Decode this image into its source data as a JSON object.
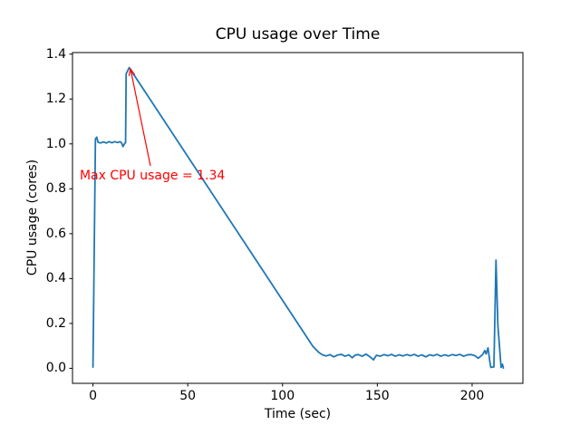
{
  "figure": {
    "background": "#ffffff",
    "frame_color": "#000000"
  },
  "chart_data": {
    "type": "line",
    "title": "CPU usage over Time",
    "xlabel": "Time (sec)",
    "ylabel": "CPU usage (cores)",
    "xlim": [
      -10.8,
      226.8
    ],
    "ylim": [
      -0.067,
      1.407
    ],
    "grid": false,
    "legend": null,
    "xticks": {
      "values": [
        0,
        50,
        100,
        150,
        200
      ],
      "labels": [
        "0",
        "50",
        "100",
        "150",
        "200"
      ]
    },
    "yticks": {
      "values": [
        0.0,
        0.2,
        0.4,
        0.6,
        0.8,
        1.0,
        1.2,
        1.4
      ],
      "labels": [
        "0.0",
        "0.2",
        "0.4",
        "0.6",
        "0.8",
        "1.0",
        "1.2",
        "1.4"
      ]
    },
    "series": [
      {
        "name": "CPU usage",
        "color": "#1f77b4",
        "line_width": 1.8,
        "points": [
          [
            0,
            0.005
          ],
          [
            1.3,
            1.022
          ],
          [
            2,
            1.03
          ],
          [
            2.7,
            1.007
          ],
          [
            4,
            1.004
          ],
          [
            5.5,
            1.009
          ],
          [
            7,
            1.004
          ],
          [
            8.5,
            1.01
          ],
          [
            10,
            1.005
          ],
          [
            11.5,
            1.01
          ],
          [
            13,
            1.006
          ],
          [
            14.3,
            1.01
          ],
          [
            15.2,
            1.003
          ],
          [
            15.8,
            0.988
          ],
          [
            16.6,
            1.0
          ],
          [
            17.2,
            1.006
          ],
          [
            17.5,
            1.312
          ],
          [
            18.2,
            1.324
          ],
          [
            19.1,
            1.34
          ],
          [
            116,
            0.098
          ],
          [
            119,
            0.072
          ],
          [
            121,
            0.06
          ],
          [
            123,
            0.055
          ],
          [
            125,
            0.061
          ],
          [
            127,
            0.051
          ],
          [
            129,
            0.059
          ],
          [
            131,
            0.062
          ],
          [
            133,
            0.054
          ],
          [
            135,
            0.06
          ],
          [
            136.8,
            0.047
          ],
          [
            138.3,
            0.059
          ],
          [
            140,
            0.061
          ],
          [
            142,
            0.054
          ],
          [
            144,
            0.063
          ],
          [
            146,
            0.052
          ],
          [
            148,
            0.038
          ],
          [
            149.5,
            0.058
          ],
          [
            151.5,
            0.054
          ],
          [
            153.5,
            0.061
          ],
          [
            155.5,
            0.056
          ],
          [
            157.5,
            0.062
          ],
          [
            159.5,
            0.054
          ],
          [
            161.5,
            0.06
          ],
          [
            163.5,
            0.055
          ],
          [
            165.5,
            0.061
          ],
          [
            167.5,
            0.056
          ],
          [
            169.5,
            0.062
          ],
          [
            171.5,
            0.054
          ],
          [
            173.5,
            0.06
          ],
          [
            175.5,
            0.051
          ],
          [
            177.5,
            0.06
          ],
          [
            179.5,
            0.056
          ],
          [
            181.5,
            0.062
          ],
          [
            183.5,
            0.054
          ],
          [
            185.5,
            0.06
          ],
          [
            187.5,
            0.055
          ],
          [
            189.5,
            0.061
          ],
          [
            191.5,
            0.057
          ],
          [
            193.5,
            0.062
          ],
          [
            195.5,
            0.054
          ],
          [
            197.5,
            0.06
          ],
          [
            199.5,
            0.061
          ],
          [
            201.5,
            0.056
          ],
          [
            203.2,
            0.045
          ],
          [
            205.5,
            0.061
          ],
          [
            206.7,
            0.079
          ],
          [
            207.4,
            0.064
          ],
          [
            208.4,
            0.091
          ],
          [
            209.4,
            0.028
          ],
          [
            209.9,
            0.004
          ],
          [
            211.5,
            0.006
          ],
          [
            212.6,
            0.482
          ],
          [
            213.6,
            0.19
          ],
          [
            215.3,
            0.004
          ],
          [
            216,
            0.018
          ],
          [
            216.5,
            0.001
          ]
        ]
      }
    ],
    "annotation": {
      "text": "Max CPU usage = 1.34",
      "color": "#ff0000",
      "max_value": "1.34",
      "text_x": -7,
      "text_y": 0.84,
      "arrow": {
        "x1": 30.3,
        "y1": 0.902,
        "x2": 19.8,
        "y2": 1.334
      }
    }
  }
}
